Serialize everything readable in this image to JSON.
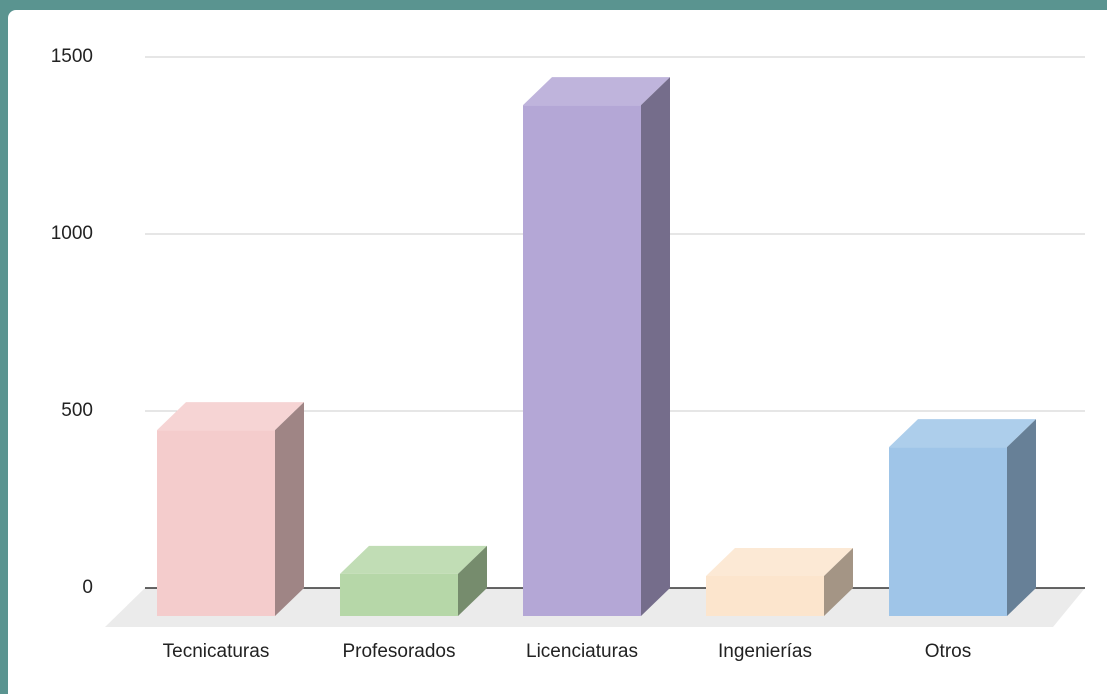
{
  "chart_data": {
    "type": "bar3d",
    "categories": [
      "Tecnicaturas",
      "Profesorados",
      "Licenciaturas",
      "Ingenierías",
      "Otros"
    ],
    "values": [
      525,
      119,
      1443,
      113,
      477
    ],
    "colors": [
      "#f4cccc",
      "#b6d7a8",
      "#b4a7d6",
      "#fce5cd",
      "#9fc5e8"
    ],
    "ylim": [
      0,
      1500
    ],
    "yticks": [
      0,
      500,
      1000,
      1500
    ],
    "grid": true
  }
}
